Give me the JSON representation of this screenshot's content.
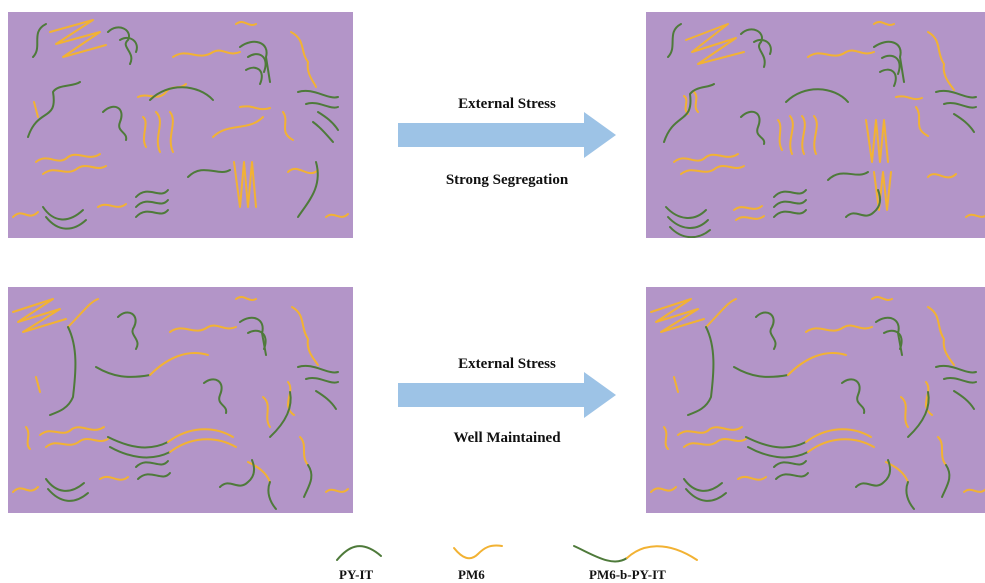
{
  "rows": [
    {
      "stress_label": "External Stress",
      "outcome_label": "Strong Segregation"
    },
    {
      "stress_label": "External Stress",
      "outcome_label": "Well Maintained"
    }
  ],
  "legend": [
    {
      "label": "PY-IT",
      "color": "#4e7a3a"
    },
    {
      "label": "PM6",
      "color": "#f2b233"
    },
    {
      "label": "PM6-b-PY-IT",
      "color": "#4e7a3a+#f2b233"
    }
  ],
  "colors": {
    "panel_background": "#b395c8",
    "arrow": "#9dc3e6",
    "py_it": "#4e7a3a",
    "pm6": "#f2b233"
  }
}
